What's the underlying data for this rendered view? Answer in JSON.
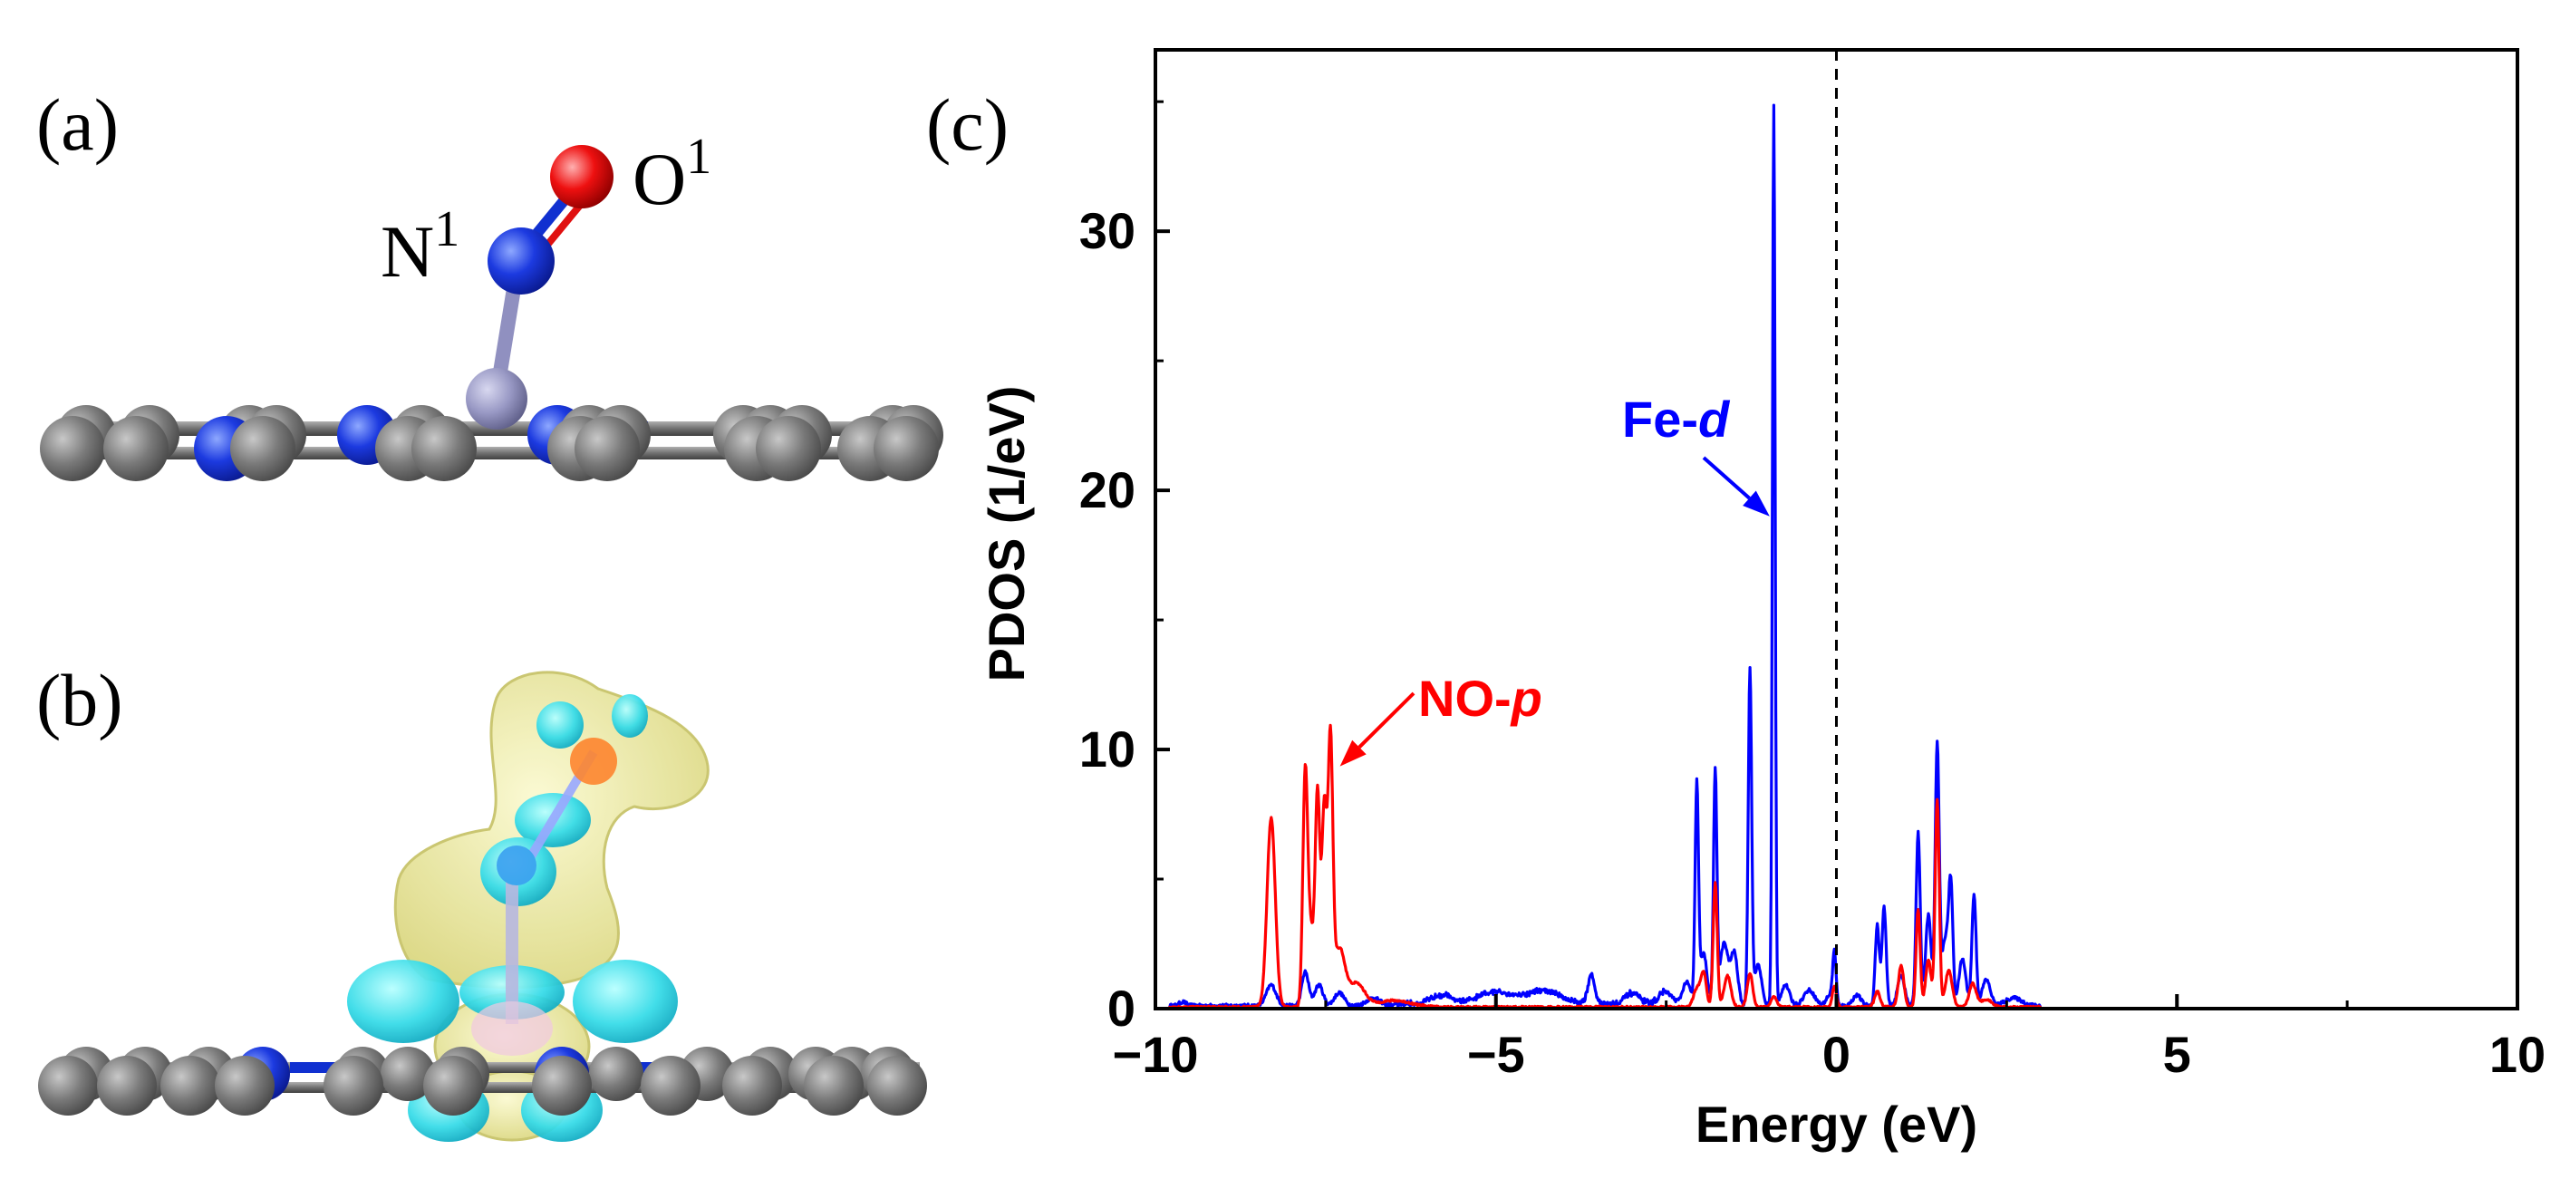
{
  "figure": {
    "panel_a": {
      "label": "(a)",
      "atom_n": "N",
      "atom_n_sup": "1",
      "atom_o": "O",
      "atom_o_sup": "1"
    },
    "panel_b": {
      "label": "(b)"
    },
    "panel_c": {
      "label": "(c)"
    }
  },
  "colors": {
    "fe_d": "#0000ff",
    "no_p": "#ff0000",
    "carbon": "#6e6e6e",
    "nitrogen": "#1030d0",
    "oxygen": "#e01010",
    "iron": "#9090c0",
    "isosurface_yellow": "#f2f0a0",
    "isosurface_cyan": "#30e0e8"
  },
  "chart_data": {
    "type": "line",
    "xlabel": "Energy (eV)",
    "ylabel": "PDOS (1/eV)",
    "xlim": [
      -10,
      10
    ],
    "ylim": [
      0,
      37
    ],
    "xticks": [
      -10,
      -5,
      0,
      5,
      10
    ],
    "xtick_labels": [
      "−10",
      "−5",
      "0",
      "5",
      "10"
    ],
    "yticks": [
      0,
      10,
      20,
      30
    ],
    "ytick_labels": [
      "0",
      "10",
      "20",
      "30"
    ],
    "fermi_level": 0,
    "grid": false,
    "annotations": [
      {
        "text": "Fe-",
        "italic": "d",
        "series": "Fe-d",
        "points_to": [
          -0.9,
          19.0
        ]
      },
      {
        "text": "NO-",
        "italic": "p",
        "series": "NO-p",
        "points_to": [
          -7.45,
          9.0
        ]
      }
    ],
    "series": [
      {
        "name": "Fe-d",
        "color": "#0000ff",
        "baseline": 0.15,
        "peaks": [
          [
            -9.6,
            0.15,
            0.05
          ],
          [
            -8.3,
            0.8,
            0.07
          ],
          [
            -7.8,
            1.3,
            0.05
          ],
          [
            -7.6,
            0.8,
            0.06
          ],
          [
            -7.3,
            0.5,
            0.07
          ],
          [
            -6.8,
            0.3,
            0.1
          ],
          [
            -5.8,
            0.35,
            0.15
          ],
          [
            -5.0,
            0.45,
            0.25
          ],
          [
            -4.3,
            0.5,
            0.25
          ],
          [
            -3.6,
            1.1,
            0.05
          ],
          [
            -3.0,
            0.4,
            0.1
          ],
          [
            -2.5,
            0.5,
            0.1
          ],
          [
            -2.2,
            0.9,
            0.06
          ],
          [
            -2.05,
            8.4,
            0.025
          ],
          [
            -1.95,
            2.0,
            0.05
          ],
          [
            -1.78,
            8.9,
            0.025
          ],
          [
            -1.65,
            2.4,
            0.06
          ],
          [
            -1.5,
            2.0,
            0.05
          ],
          [
            -1.27,
            13.0,
            0.025
          ],
          [
            -1.15,
            1.6,
            0.05
          ],
          [
            -0.92,
            34.7,
            0.02
          ],
          [
            -0.75,
            0.8,
            0.06
          ],
          [
            -0.4,
            0.6,
            0.08
          ],
          [
            -0.1,
            0.4,
            0.05
          ],
          [
            -0.03,
            2.0,
            0.025
          ],
          [
            0.3,
            0.4,
            0.06
          ],
          [
            0.6,
            3.1,
            0.03
          ],
          [
            0.7,
            3.8,
            0.03
          ],
          [
            0.95,
            1.2,
            0.05
          ],
          [
            1.2,
            6.7,
            0.03
          ],
          [
            1.35,
            3.5,
            0.04
          ],
          [
            1.48,
            10.0,
            0.03
          ],
          [
            1.6,
            2.6,
            0.05
          ],
          [
            1.68,
            4.3,
            0.03
          ],
          [
            1.85,
            1.8,
            0.05
          ],
          [
            2.02,
            4.3,
            0.03
          ],
          [
            2.2,
            1.0,
            0.06
          ],
          [
            2.6,
            0.3,
            0.12
          ]
        ]
      },
      {
        "name": "NO-p",
        "color": "#ff0000",
        "baseline": 0.08,
        "peaks": [
          [
            -8.3,
            7.3,
            0.06
          ],
          [
            -7.8,
            9.0,
            0.035
          ],
          [
            -7.72,
            2.8,
            0.04
          ],
          [
            -7.62,
            8.3,
            0.035
          ],
          [
            -7.52,
            7.6,
            0.035
          ],
          [
            -7.43,
            10.0,
            0.035
          ],
          [
            -7.3,
            2.2,
            0.08
          ],
          [
            -7.05,
            0.9,
            0.12
          ],
          [
            -6.5,
            0.25,
            0.25
          ],
          [
            -2.05,
            0.7,
            0.05
          ],
          [
            -1.95,
            1.3,
            0.04
          ],
          [
            -1.78,
            4.8,
            0.03
          ],
          [
            -1.6,
            1.2,
            0.05
          ],
          [
            -1.27,
            1.3,
            0.04
          ],
          [
            -0.92,
            0.4,
            0.04
          ],
          [
            -0.03,
            0.8,
            0.03
          ],
          [
            0.6,
            0.6,
            0.04
          ],
          [
            0.95,
            1.6,
            0.04
          ],
          [
            1.2,
            3.8,
            0.03
          ],
          [
            1.35,
            1.8,
            0.04
          ],
          [
            1.48,
            8.0,
            0.03
          ],
          [
            1.65,
            1.4,
            0.05
          ],
          [
            2.0,
            0.9,
            0.05
          ],
          [
            2.2,
            0.3,
            0.08
          ]
        ]
      }
    ]
  }
}
